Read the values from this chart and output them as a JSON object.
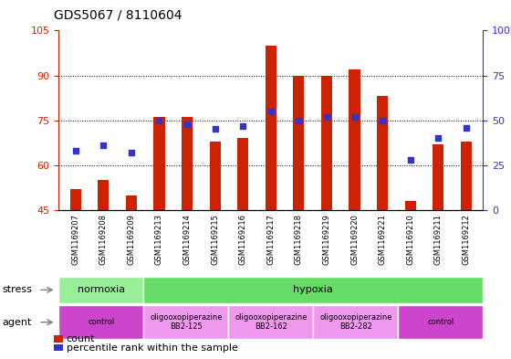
{
  "title": "GDS5067 / 8110604",
  "samples": [
    "GSM1169207",
    "GSM1169208",
    "GSM1169209",
    "GSM1169213",
    "GSM1169214",
    "GSM1169215",
    "GSM1169216",
    "GSM1169217",
    "GSM1169218",
    "GSM1169219",
    "GSM1169220",
    "GSM1169221",
    "GSM1169210",
    "GSM1169211",
    "GSM1169212"
  ],
  "counts": [
    52,
    55,
    50,
    76,
    76,
    68,
    69,
    100,
    90,
    90,
    92,
    83,
    48,
    67,
    68
  ],
  "percentiles": [
    33,
    36,
    32,
    50,
    48,
    45,
    47,
    55,
    50,
    52,
    52,
    50,
    28,
    40,
    46
  ],
  "ylim_left": [
    45,
    105
  ],
  "ylim_right": [
    0,
    100
  ],
  "yticks_left": [
    45,
    60,
    75,
    90,
    105
  ],
  "yticks_right": [
    0,
    25,
    50,
    75,
    100
  ],
  "ytick_labels_right": [
    "0",
    "25",
    "50",
    "75",
    "100%"
  ],
  "bar_color": "#cc2200",
  "dot_color": "#3333cc",
  "background_color": "#ffffff",
  "xticklabel_bg": "#cccccc",
  "stress_groups": [
    {
      "label": "normoxia",
      "start": 0,
      "end": 3,
      "color": "#99ee99"
    },
    {
      "label": "hypoxia",
      "start": 3,
      "end": 15,
      "color": "#66dd66"
    }
  ],
  "agent_groups": [
    {
      "label": "control",
      "start": 0,
      "end": 3,
      "color": "#cc44cc"
    },
    {
      "label": "oligooxopiperazine\nBB2-125",
      "start": 3,
      "end": 6,
      "color": "#ee99ee"
    },
    {
      "label": "oligooxopiperazine\nBB2-162",
      "start": 6,
      "end": 9,
      "color": "#ee99ee"
    },
    {
      "label": "oligooxopiperazine\nBB2-282",
      "start": 9,
      "end": 12,
      "color": "#ee99ee"
    },
    {
      "label": "control",
      "start": 12,
      "end": 15,
      "color": "#cc44cc"
    }
  ],
  "bar_width": 0.4,
  "dot_size": 25,
  "left_axis_color": "#cc2200",
  "right_axis_color": "#3333cc"
}
